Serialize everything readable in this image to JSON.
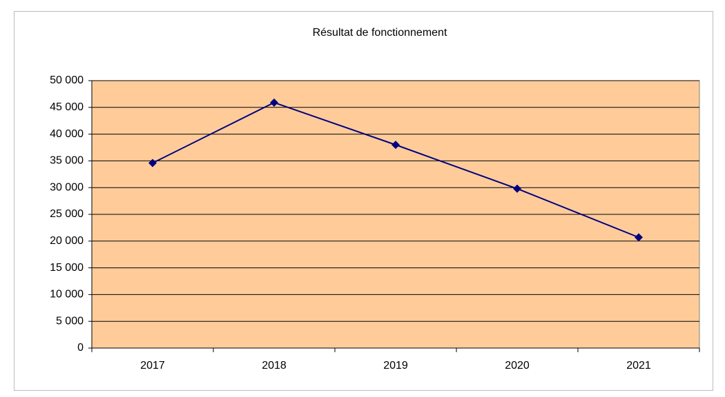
{
  "chart_data": {
    "type": "line",
    "title": "Résultat de fonctionnement",
    "categories": [
      "2017",
      "2018",
      "2019",
      "2020",
      "2021"
    ],
    "series": [
      {
        "name": "Résultat de fonctionnement",
        "color": "#000080",
        "values": [
          34600,
          45900,
          38000,
          29800,
          20700
        ]
      }
    ],
    "ylim": [
      0,
      50000
    ],
    "yticks": [
      0,
      {
        "value": 5000,
        "label": "5 000"
      },
      {
        "value": 10000,
        "label": "10 000"
      },
      {
        "value": 15000,
        "label": "15 000"
      },
      {
        "value": 20000,
        "label": "20 000"
      },
      {
        "value": 25000,
        "label": "25 000"
      },
      {
        "value": 30000,
        "label": "30 000"
      },
      {
        "value": 35000,
        "label": "35 000"
      },
      {
        "value": 40000,
        "label": "40 000"
      },
      {
        "value": 45000,
        "label": "45 000"
      },
      {
        "value": 50000,
        "label": "50 000"
      }
    ],
    "grid": true,
    "plot_background": "#ffcc99"
  }
}
